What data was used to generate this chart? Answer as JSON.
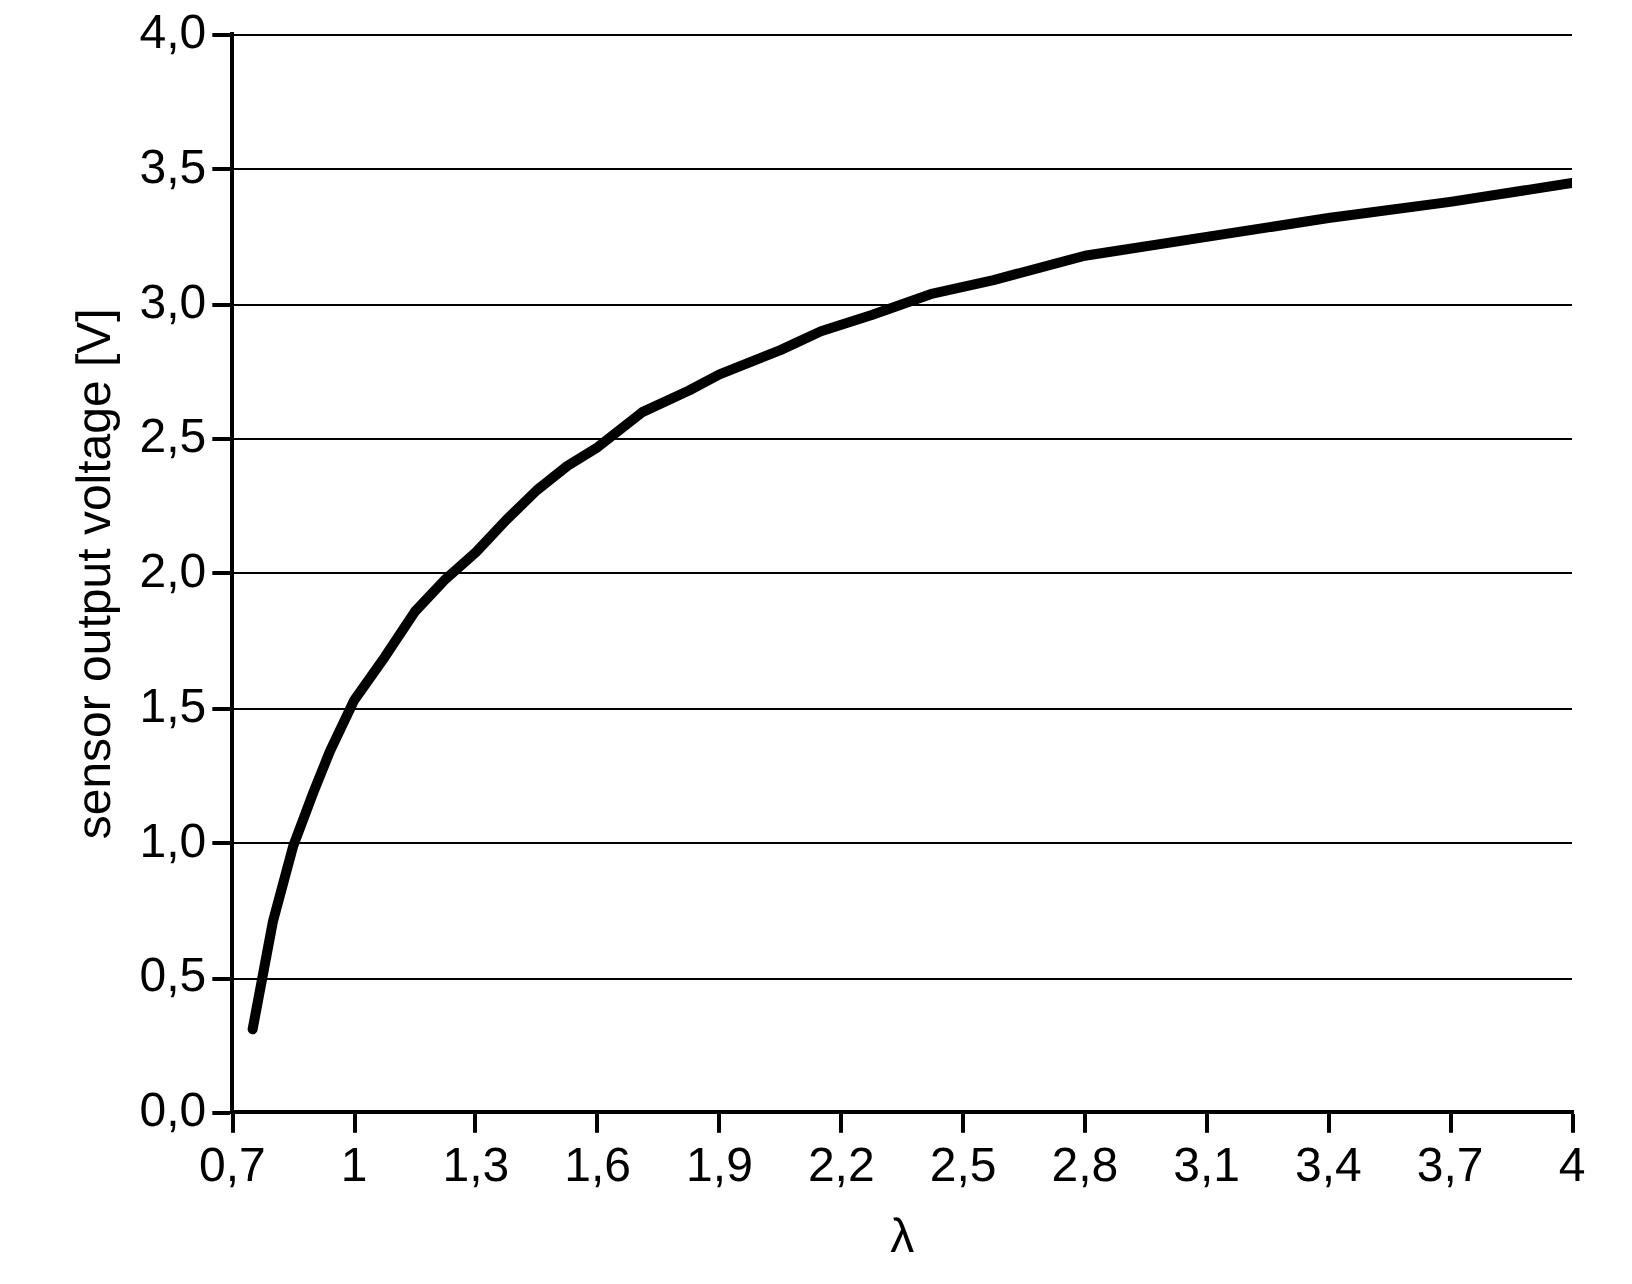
{
  "chart_data": {
    "type": "line",
    "xlabel": "λ",
    "ylabel": "sensor output voltage [V]",
    "xlim": [
      0.7,
      4
    ],
    "xticks": [
      {
        "value": 0.7,
        "label": "0,7"
      },
      1,
      {
        "value": 1.3,
        "label": "1,3"
      },
      {
        "value": 1.6,
        "label": "1,6"
      },
      {
        "value": 1.9,
        "label": "1,9"
      },
      {
        "value": 2.2,
        "label": "2,2"
      },
      {
        "value": 2.5,
        "label": "2,5"
      },
      {
        "value": 2.8,
        "label": "2,8"
      },
      {
        "value": 3.1,
        "label": "3,1"
      },
      {
        "value": 3.4,
        "label": "3,4"
      },
      {
        "value": 3.7,
        "label": "3,7"
      },
      4
    ],
    "ylim": [
      0,
      4
    ],
    "yticks": [
      {
        "value": 0,
        "label": "0,0"
      },
      {
        "value": 0.5,
        "label": "0,5"
      },
      {
        "value": 1,
        "label": "1,0"
      },
      {
        "value": 1.5,
        "label": "1,5"
      },
      {
        "value": 2,
        "label": "2,0"
      },
      {
        "value": 2.5,
        "label": "2,5"
      },
      {
        "value": 3,
        "label": "3,0"
      },
      {
        "value": 3.5,
        "label": "3,5"
      },
      {
        "value": 4,
        "label": "4,0"
      }
    ],
    "x": [
      0.75,
      0.8,
      0.85,
      0.9,
      0.94,
      1.0,
      1.075,
      1.15,
      1.225,
      1.3,
      1.375,
      1.45,
      1.525,
      1.6,
      1.71,
      1.825,
      1.9,
      2.05,
      2.15,
      2.275,
      2.425,
      2.575,
      2.8,
      3.1,
      3.4,
      3.7,
      4.0
    ],
    "series": [
      {
        "color": "#000000",
        "values": [
          0.31,
          0.71,
          0.99,
          1.19,
          1.34,
          1.53,
          1.69,
          1.86,
          1.98,
          2.08,
          2.2,
          2.31,
          2.4,
          2.47,
          2.6,
          2.68,
          2.74,
          2.83,
          2.9,
          2.96,
          3.04,
          3.09,
          3.18,
          3.25,
          3.32,
          3.38,
          3.45
        ]
      }
    ],
    "grid": "y",
    "legend": false,
    "marker": "none",
    "line_style": "solid"
  }
}
